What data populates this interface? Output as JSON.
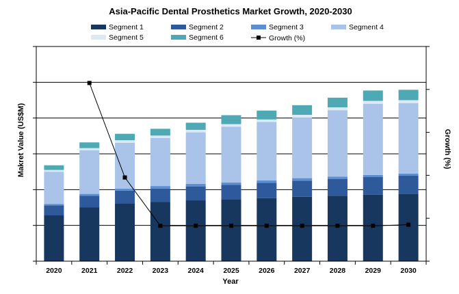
{
  "chart_data": {
    "type": "bar",
    "stacked": true,
    "title": "Asia-Pacific Dental Prosthetics Market Growth, 2020-2030",
    "xlabel": "Year",
    "ylabel": "Makret Value (US$M)",
    "y2label": "Growth (%)",
    "categories": [
      "2020",
      "2021",
      "2022",
      "2023",
      "2024",
      "2025",
      "2026",
      "2027",
      "2028",
      "2029",
      "2030"
    ],
    "ylim": [
      0,
      6
    ],
    "y2lim": [
      0,
      10
    ],
    "grid": true,
    "legend_position": "top",
    "series": [
      {
        "name": "Segment 1",
        "color": "#17375E",
        "values": [
          1.28,
          1.5,
          1.62,
          1.66,
          1.7,
          1.72,
          1.76,
          1.8,
          1.83,
          1.86,
          1.88
        ]
      },
      {
        "name": "Segment 2",
        "color": "#2E5A9C",
        "values": [
          0.28,
          0.33,
          0.35,
          0.37,
          0.39,
          0.41,
          0.43,
          0.45,
          0.47,
          0.49,
          0.51
        ]
      },
      {
        "name": "Segment 3",
        "color": "#5B8FD1",
        "values": [
          0.04,
          0.05,
          0.06,
          0.07,
          0.07,
          0.07,
          0.07,
          0.07,
          0.06,
          0.06,
          0.06
        ]
      },
      {
        "name": "Segment 4",
        "color": "#A9C4E8",
        "values": [
          0.9,
          1.22,
          1.28,
          1.34,
          1.44,
          1.56,
          1.63,
          1.69,
          1.86,
          1.99,
          1.97
        ]
      },
      {
        "name": "Segment 5",
        "color": "#DCE8F6",
        "values": [
          0.05,
          0.06,
          0.07,
          0.07,
          0.07,
          0.07,
          0.07,
          0.08,
          0.08,
          0.08,
          0.08
        ]
      },
      {
        "name": "Segment 6",
        "color": "#4FA9B4",
        "values": [
          0.13,
          0.16,
          0.18,
          0.19,
          0.2,
          0.25,
          0.25,
          0.27,
          0.27,
          0.29,
          0.29
        ]
      }
    ],
    "line_series": {
      "name": "Growth (%)",
      "color": "#000000",
      "axis": "right",
      "values": [
        null,
        8.3,
        3.9,
        1.65,
        1.65,
        1.65,
        1.65,
        1.65,
        1.65,
        1.65,
        1.7
      ]
    }
  }
}
